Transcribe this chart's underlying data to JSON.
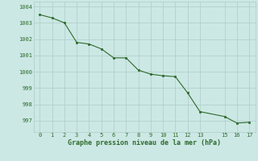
{
  "x": [
    0,
    1,
    2,
    3,
    4,
    5,
    6,
    7,
    8,
    9,
    10,
    11,
    12,
    13,
    15,
    16,
    17
  ],
  "y": [
    1003.5,
    1003.3,
    1003.0,
    1001.8,
    1001.7,
    1001.4,
    1000.85,
    1000.85,
    1000.1,
    999.85,
    999.75,
    999.7,
    998.7,
    997.55,
    997.25,
    996.85,
    996.9
  ],
  "line_color": "#2d6a2d",
  "marker_color": "#2d6a2d",
  "bg_color": "#cce8e4",
  "grid_color": "#b0ccc8",
  "text_color": "#2d6a2d",
  "xlabel": "Graphe pression niveau de la mer (hPa)",
  "ylim_min": 996.3,
  "ylim_max": 1004.3,
  "yticks": [
    997,
    998,
    999,
    1000,
    1001,
    1002,
    1003,
    1004
  ],
  "xticks": [
    0,
    1,
    2,
    3,
    4,
    5,
    6,
    7,
    8,
    9,
    10,
    11,
    12,
    13,
    15,
    16,
    17
  ]
}
